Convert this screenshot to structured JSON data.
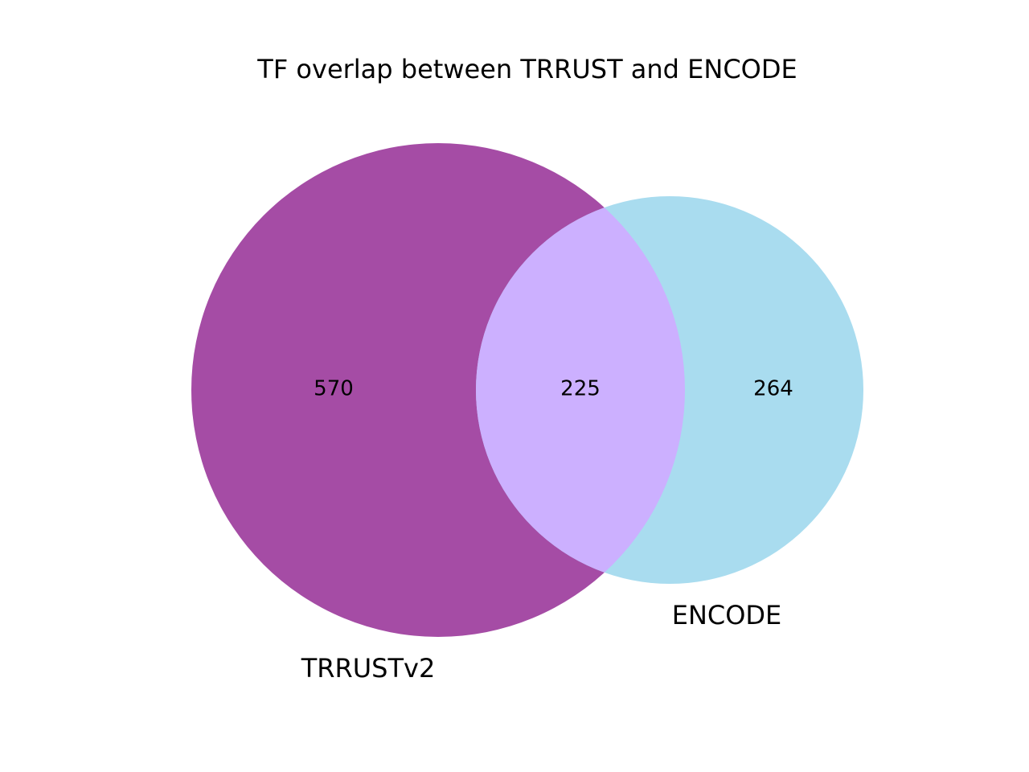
{
  "title": "TF overlap between TRRUST and ENCODE",
  "sets": [
    {
      "key": "left",
      "label": "TRRUSTv2",
      "only_count": "570",
      "color": "#a54ca5"
    },
    {
      "key": "right",
      "label": "ENCODE",
      "only_count": "264",
      "color": "#a9dcef"
    }
  ],
  "intersection": {
    "count": "225",
    "color": "#ccb0ff"
  }
}
